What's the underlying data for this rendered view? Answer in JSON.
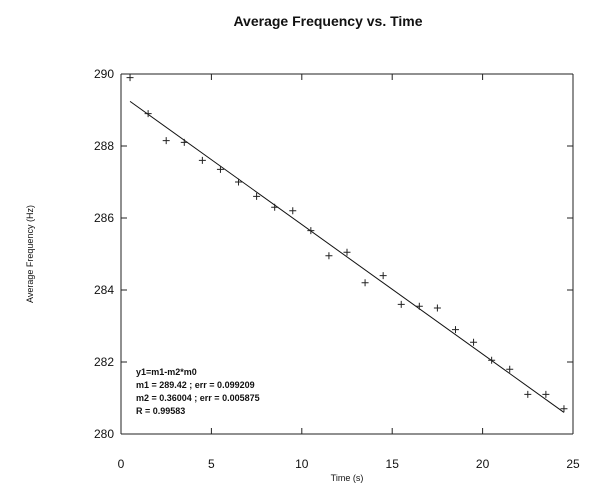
{
  "chart_data": {
    "type": "scatter",
    "title": "Average Frequency vs. Time",
    "xlabel": "Time (s)",
    "ylabel": "Average Frequency (Hz)",
    "xlim": [
      0,
      25
    ],
    "ylim": [
      280,
      290
    ],
    "xticks": [
      "0",
      "5",
      "10",
      "15",
      "20",
      "25"
    ],
    "yticks": [
      "280",
      "282",
      "284",
      "286",
      "288",
      "290"
    ],
    "grid": false,
    "marker": "+",
    "points": [
      {
        "x": 0.5,
        "y": 289.9
      },
      {
        "x": 1.5,
        "y": 288.9
      },
      {
        "x": 2.5,
        "y": 288.15
      },
      {
        "x": 3.5,
        "y": 288.1
      },
      {
        "x": 4.5,
        "y": 287.6
      },
      {
        "x": 5.5,
        "y": 287.35
      },
      {
        "x": 6.5,
        "y": 287.0
      },
      {
        "x": 7.5,
        "y": 286.6
      },
      {
        "x": 8.5,
        "y": 286.3
      },
      {
        "x": 9.5,
        "y": 286.2
      },
      {
        "x": 10.5,
        "y": 285.65
      },
      {
        "x": 11.5,
        "y": 284.95
      },
      {
        "x": 12.5,
        "y": 285.05
      },
      {
        "x": 13.5,
        "y": 284.2
      },
      {
        "x": 14.5,
        "y": 284.4
      },
      {
        "x": 15.5,
        "y": 283.6
      },
      {
        "x": 16.5,
        "y": 283.55
      },
      {
        "x": 17.5,
        "y": 283.5
      },
      {
        "x": 18.5,
        "y": 282.9
      },
      {
        "x": 19.5,
        "y": 282.55
      },
      {
        "x": 20.5,
        "y": 282.05
      },
      {
        "x": 21.5,
        "y": 281.8
      },
      {
        "x": 22.5,
        "y": 281.1
      },
      {
        "x": 23.5,
        "y": 281.1
      },
      {
        "x": 24.5,
        "y": 280.7
      }
    ],
    "fit": {
      "equation": "y1=m1-m2*m0",
      "m1": 289.42,
      "m2": 0.36004,
      "x_range": [
        0.5,
        24.5
      ]
    },
    "annotations": [
      "y1=m1-m2*m0",
      "m1 = 289.42 ; err = 0.099209",
      "m2 = 0.36004 ; err = 0.005875",
      "R = 0.99583"
    ]
  }
}
